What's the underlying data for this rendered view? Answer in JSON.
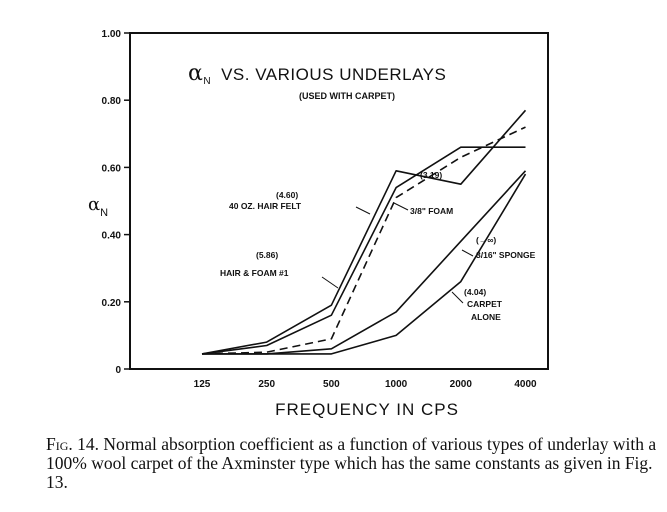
{
  "chart_data": {
    "type": "line",
    "title": "αN VS. VARIOUS UNDERLAYS",
    "title_symbol": "α",
    "title_subscript": "N",
    "title_rest": "VS. VARIOUS UNDERLAYS",
    "subtitle": "(USED WITH CARPET)",
    "xlabel": "FREQUENCY IN CPS",
    "ylabel": "αN",
    "ylabel_symbol": "α",
    "ylabel_subscript": "N",
    "x": [
      125,
      250,
      500,
      1000,
      2000,
      4000
    ],
    "x_tick_labels": [
      "125",
      "250",
      "500",
      "1000",
      "2000",
      "4000"
    ],
    "y_tick_labels": [
      "0",
      "0.20",
      "0.40",
      "0.60",
      "0.80",
      "1.00"
    ],
    "y_ticks": [
      0,
      0.2,
      0.4,
      0.6,
      0.8,
      1.0
    ],
    "ylim": [
      0,
      1.0
    ],
    "xscale": "log",
    "grid": false,
    "series": [
      {
        "name": "40 OZ. HAIR FELT",
        "dashed": false,
        "points": [
          [
            125,
            0.045
          ],
          [
            250,
            0.08
          ],
          [
            500,
            0.19
          ],
          [
            1000,
            0.59
          ],
          [
            2000,
            0.55
          ],
          [
            4000,
            0.77
          ]
        ]
      },
      {
        "name": "HAIR & FOAM #1",
        "dashed": false,
        "points": [
          [
            125,
            0.045
          ],
          [
            250,
            0.07
          ],
          [
            500,
            0.16
          ],
          [
            1000,
            0.54
          ],
          [
            2000,
            0.66
          ],
          [
            4000,
            0.66
          ]
        ]
      },
      {
        "name": "3/8\" FOAM",
        "dashed": true,
        "points": [
          [
            125,
            0.045
          ],
          [
            250,
            0.05
          ],
          [
            500,
            0.09
          ],
          [
            1000,
            0.51
          ],
          [
            2000,
            0.63
          ],
          [
            4000,
            0.72
          ]
        ]
      },
      {
        "name": "3/16\" SPONGE",
        "dashed": false,
        "points": [
          [
            125,
            0.045
          ],
          [
            250,
            0.045
          ],
          [
            500,
            0.06
          ],
          [
            1000,
            0.17
          ],
          [
            2000,
            0.38
          ],
          [
            4000,
            0.59
          ]
        ]
      },
      {
        "name": "CARPET ALONE",
        "dashed": false,
        "points": [
          [
            125,
            0.045
          ],
          [
            250,
            0.045
          ],
          [
            500,
            0.045
          ],
          [
            1000,
            0.1
          ],
          [
            2000,
            0.26
          ],
          [
            4000,
            0.58
          ]
        ]
      }
    ],
    "annotations": [
      {
        "lines": [
          "(4.60)",
          "40 OZ. HAIR FELT"
        ]
      },
      {
        "lines": [
          "(5.86)",
          "HAIR & FOAM #1"
        ]
      },
      {
        "lines": [
          "(3.19)",
          "3/8\" FOAM"
        ]
      },
      {
        "lines": [
          "(→∞)",
          "3/16\" SPONGE"
        ]
      },
      {
        "lines": [
          "(4.04)",
          "CARPET",
          "ALONE"
        ]
      }
    ]
  },
  "caption": {
    "label": "Fig. 14.",
    "text": "Normal absorption coefficient as a function of various types of underlay with a 100% wool carpet of the Axminster type which has the same constants as given in Fig. 13."
  }
}
